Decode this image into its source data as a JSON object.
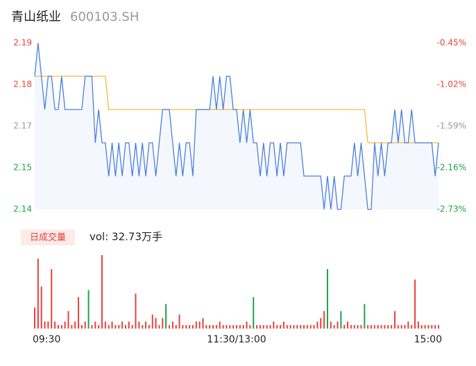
{
  "chart_data": [
    {
      "type": "line",
      "title": "青山纸业",
      "subtitle": "600103.SH",
      "xlim": [
        0,
        120
      ],
      "ylim": [
        2.14,
        2.19
      ],
      "yticks": [
        2.19,
        {
          "value": 2.1775,
          "label": "2.18"
        },
        {
          "value": 2.165,
          "label": "2.17"
        },
        {
          "value": 2.1525,
          "label": "2.15"
        },
        2.14
      ],
      "ytick_colors": [
        "#e8413b",
        "#e8413b",
        "#999999",
        "#1aa34a",
        "#1aa34a"
      ],
      "y2lim": [
        -2.73,
        -0.45
      ],
      "y2ticks": [
        {
          "value": -0.45,
          "label": "-0.45%"
        },
        {
          "value": -1.02,
          "label": "-1.02%"
        },
        {
          "value": -1.59,
          "label": "-1.59%"
        },
        {
          "value": -2.16,
          "label": "-2.16%"
        },
        {
          "value": -2.73,
          "label": "-2.73%"
        }
      ],
      "series": [
        {
          "color": "#4a7fe0",
          "values": [
            2.18,
            2.19,
            2.18,
            2.17,
            2.18,
            2.18,
            2.17,
            2.17,
            2.18,
            2.17,
            2.17,
            2.17,
            2.17,
            2.17,
            2.17,
            2.18,
            2.18,
            2.18,
            2.16,
            2.17,
            2.16,
            2.16,
            2.15,
            2.16,
            2.15,
            2.16,
            2.15,
            2.16,
            2.16,
            2.15,
            2.16,
            2.15,
            2.16,
            2.15,
            2.16,
            2.16,
            2.15,
            2.16,
            2.17,
            2.17,
            2.17,
            2.16,
            2.15,
            2.16,
            2.15,
            2.16,
            2.16,
            2.15,
            2.17,
            2.17,
            2.17,
            2.17,
            2.17,
            2.18,
            2.17,
            2.18,
            2.17,
            2.18,
            2.18,
            2.17,
            2.17,
            2.16,
            2.17,
            2.16,
            2.17,
            2.16,
            2.16,
            2.15,
            2.16,
            2.15,
            2.16,
            2.16,
            2.15,
            2.16,
            2.15,
            2.16,
            2.16,
            2.16,
            2.16,
            2.16,
            2.15,
            2.15,
            2.15,
            2.15,
            2.15,
            2.15,
            2.14,
            2.15,
            2.14,
            2.15,
            2.14,
            2.14,
            2.15,
            2.15,
            2.15,
            2.16,
            2.15,
            2.16,
            2.15,
            2.14,
            2.14,
            2.16,
            2.15,
            2.16,
            2.15,
            2.16,
            2.16,
            2.17,
            2.16,
            2.17,
            2.16,
            2.16,
            2.17,
            2.16,
            2.16,
            2.16,
            2.16,
            2.16,
            2.16,
            2.15,
            2.16
          ]
        },
        {
          "color": "#f5b942",
          "values": [
            2.18,
            2.18,
            2.18,
            2.18,
            2.18,
            2.18,
            2.18,
            2.18,
            2.18,
            2.18,
            2.18,
            2.18,
            2.18,
            2.18,
            2.18,
            2.18,
            2.18,
            2.18,
            2.18,
            2.18,
            2.18,
            2.18,
            2.17,
            2.17,
            2.17,
            2.17,
            2.17,
            2.17,
            2.17,
            2.17,
            2.17,
            2.17,
            2.17,
            2.17,
            2.17,
            2.17,
            2.17,
            2.17,
            2.17,
            2.17,
            2.17,
            2.17,
            2.17,
            2.17,
            2.17,
            2.17,
            2.17,
            2.17,
            2.17,
            2.17,
            2.17,
            2.17,
            2.17,
            2.17,
            2.17,
            2.17,
            2.17,
            2.17,
            2.17,
            2.17,
            2.17,
            2.17,
            2.17,
            2.17,
            2.17,
            2.17,
            2.17,
            2.17,
            2.17,
            2.17,
            2.17,
            2.17,
            2.17,
            2.17,
            2.17,
            2.17,
            2.17,
            2.17,
            2.17,
            2.17,
            2.17,
            2.17,
            2.17,
            2.17,
            2.17,
            2.17,
            2.17,
            2.17,
            2.17,
            2.17,
            2.17,
            2.17,
            2.17,
            2.17,
            2.17,
            2.17,
            2.17,
            2.17,
            2.17,
            2.16,
            2.16,
            2.16,
            2.16,
            2.16,
            2.16,
            2.16,
            2.16,
            2.16,
            2.16,
            2.16,
            2.16,
            2.16,
            2.16,
            2.16,
            2.16,
            2.16,
            2.16,
            2.16,
            2.16,
            2.16,
            2.16
          ]
        }
      ]
    },
    {
      "type": "bar",
      "title": "日成交量",
      "subtitle": "vol: 32.73万手",
      "xlim": [
        0,
        120
      ],
      "xticks": [
        {
          "value": 0,
          "label": "09:30"
        },
        {
          "value": 60,
          "label": "11:30/13:00"
        },
        {
          "value": 120,
          "label": "15:00"
        }
      ],
      "ylim": [
        0,
        21
      ],
      "series": [
        {
          "color": "#e8413b",
          "values": [
            6,
            20,
            12,
            2,
            2,
            17,
            2,
            1,
            1,
            2,
            5,
            1,
            2,
            9,
            1,
            2,
            null,
            1,
            2,
            1,
            21,
            2,
            1,
            2,
            1,
            1,
            2,
            1,
            2,
            1,
            10,
            2,
            1,
            2,
            1,
            4,
            3,
            1,
            3,
            null,
            1,
            2,
            1,
            4,
            1,
            1,
            1,
            1,
            2,
            2,
            3,
            1,
            1,
            1,
            1,
            2,
            1,
            1,
            1,
            1,
            1,
            1,
            1,
            2,
            1,
            null,
            1,
            1,
            1,
            1,
            1,
            2,
            1,
            1,
            2,
            1,
            1,
            1,
            1,
            1,
            1,
            1,
            1,
            1,
            2,
            3,
            5,
            null,
            2,
            1,
            2,
            null,
            1,
            2,
            1,
            1,
            1,
            1,
            null,
            1,
            1,
            1,
            1,
            1,
            1,
            1,
            1,
            5,
            1,
            1,
            1,
            2,
            1,
            14,
            2,
            1,
            1,
            1,
            1,
            1,
            1
          ]
        },
        {
          "color": "#1aa34a",
          "values": [
            null,
            null,
            null,
            null,
            null,
            null,
            null,
            null,
            null,
            null,
            null,
            null,
            null,
            null,
            null,
            null,
            11,
            null,
            null,
            null,
            null,
            null,
            null,
            null,
            null,
            null,
            null,
            null,
            null,
            null,
            null,
            null,
            null,
            null,
            null,
            null,
            null,
            null,
            null,
            7,
            null,
            null,
            null,
            null,
            null,
            null,
            null,
            null,
            null,
            null,
            null,
            null,
            null,
            null,
            null,
            null,
            null,
            null,
            null,
            null,
            null,
            null,
            null,
            null,
            null,
            9,
            null,
            null,
            null,
            null,
            null,
            null,
            null,
            null,
            null,
            null,
            null,
            null,
            null,
            null,
            null,
            null,
            null,
            null,
            null,
            null,
            null,
            17,
            null,
            null,
            null,
            5,
            null,
            null,
            null,
            null,
            null,
            null,
            7,
            null,
            null,
            null,
            null,
            null,
            null,
            null,
            null,
            null,
            null,
            null,
            null,
            null,
            null,
            null,
            null,
            null,
            null,
            null,
            null,
            null,
            null
          ]
        }
      ]
    }
  ]
}
